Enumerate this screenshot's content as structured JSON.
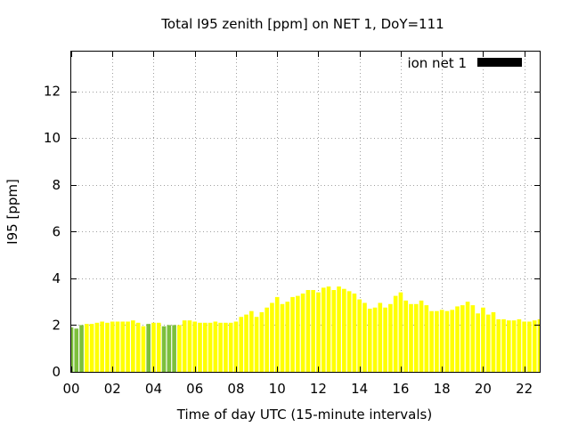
{
  "chart_data": {
    "type": "bar",
    "title": "Total I95 zenith [ppm] on NET 1, DoY=111",
    "xlabel": "Time of day UTC (15-minute intervals)",
    "ylabel": "I95 [ppm]",
    "xlim": [
      0,
      22.75
    ],
    "ylim": [
      0,
      13.7
    ],
    "x_ticks": [
      {
        "value": 0,
        "label": "00"
      },
      {
        "value": 2,
        "label": "02"
      },
      {
        "value": 4,
        "label": "04"
      },
      {
        "value": 6,
        "label": "06"
      },
      {
        "value": 8,
        "label": "08"
      },
      {
        "value": 10,
        "label": "10"
      },
      {
        "value": 12,
        "label": "12"
      },
      {
        "value": 14,
        "label": "14"
      },
      {
        "value": 16,
        "label": "16"
      },
      {
        "value": 18,
        "label": "18"
      },
      {
        "value": 20,
        "label": "20"
      },
      {
        "value": 22,
        "label": "22"
      }
    ],
    "y_ticks": [
      0,
      2,
      4,
      6,
      8,
      10,
      12
    ],
    "grid": true,
    "legend": {
      "position": "top-right",
      "entries": [
        {
          "label": "ion net 1",
          "color": "#000000"
        }
      ]
    },
    "bar_width_hours": 0.2,
    "colors": {
      "default": "#ffff00",
      "highlight": "#7cbf3c"
    },
    "series": [
      {
        "name": "ion net 1",
        "x": [
          0.0,
          0.25,
          0.5,
          0.75,
          1.0,
          1.25,
          1.5,
          1.75,
          2.0,
          2.25,
          2.5,
          2.75,
          3.0,
          3.25,
          3.5,
          3.75,
          4.0,
          4.25,
          4.5,
          4.75,
          5.0,
          5.25,
          5.5,
          5.75,
          6.0,
          6.25,
          6.5,
          6.75,
          7.0,
          7.25,
          7.5,
          7.75,
          8.0,
          8.25,
          8.5,
          8.75,
          9.0,
          9.25,
          9.5,
          9.75,
          10.0,
          10.25,
          10.5,
          10.75,
          11.0,
          11.25,
          11.5,
          11.75,
          12.0,
          12.25,
          12.5,
          12.75,
          13.0,
          13.25,
          13.5,
          13.75,
          14.0,
          14.25,
          14.5,
          14.75,
          15.0,
          15.25,
          15.5,
          15.75,
          16.0,
          16.25,
          16.5,
          16.75,
          17.0,
          17.25,
          17.5,
          17.75,
          18.0,
          18.25,
          18.5,
          18.75,
          19.0,
          19.25,
          19.5,
          19.75,
          20.0,
          20.25,
          20.5,
          20.75,
          21.0,
          21.25,
          21.5,
          21.75,
          22.0,
          22.25,
          22.5,
          22.75
        ],
        "values": [
          1.9,
          1.85,
          2.0,
          2.05,
          2.05,
          2.1,
          2.15,
          2.1,
          2.15,
          2.15,
          2.15,
          2.15,
          2.2,
          2.1,
          1.95,
          2.05,
          2.1,
          2.1,
          1.95,
          2.0,
          2.0,
          2.0,
          2.2,
          2.2,
          2.15,
          2.1,
          2.1,
          2.1,
          2.15,
          2.1,
          2.1,
          2.1,
          2.15,
          2.35,
          2.45,
          2.6,
          2.35,
          2.55,
          2.75,
          2.95,
          3.2,
          2.9,
          3.0,
          3.2,
          3.25,
          3.35,
          3.5,
          3.5,
          3.4,
          3.6,
          3.65,
          3.5,
          3.65,
          3.55,
          3.45,
          3.35,
          3.1,
          2.95,
          2.7,
          2.75,
          2.95,
          2.75,
          2.9,
          3.25,
          3.4,
          3.05,
          2.9,
          2.9,
          3.05,
          2.85,
          2.6,
          2.6,
          2.65,
          2.6,
          2.65,
          2.8,
          2.85,
          3.0,
          2.85,
          2.5,
          2.75,
          2.45,
          2.55,
          2.25,
          2.25,
          2.2,
          2.2,
          2.25,
          2.15,
          2.15,
          2.2,
          2.25
        ],
        "highlight": [
          0,
          1,
          2,
          15,
          18,
          19,
          20
        ]
      }
    ]
  }
}
